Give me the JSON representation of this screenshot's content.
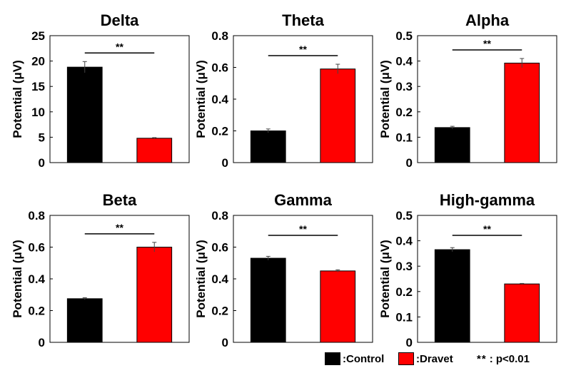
{
  "legend": {
    "control": {
      "label": ":Control",
      "color": "#000000"
    },
    "dravet": {
      "label": ":Dravet",
      "color": "#ff0000"
    },
    "significance": {
      "symbol": "**",
      "label": ": p<0.01"
    }
  },
  "chart_data": [
    {
      "type": "bar",
      "title": "Delta",
      "ylabel": "Potential (μV)",
      "ylim": [
        0,
        25
      ],
      "yticks": [
        "0",
        "5",
        "10",
        "15",
        "20",
        "25"
      ],
      "categories": [
        "Control",
        "Dravet"
      ],
      "values": [
        18.8,
        4.8
      ],
      "errors": [
        1.1,
        0.12
      ],
      "colors": [
        "#000000",
        "#ff0000"
      ],
      "significance": "**"
    },
    {
      "type": "bar",
      "title": "Theta",
      "ylabel": "Potential (μV)",
      "ylim": [
        0,
        0.8
      ],
      "yticks": [
        "0",
        "0.2",
        "0.4",
        "0.6",
        "0.8"
      ],
      "categories": [
        "Control",
        "Dravet"
      ],
      "values": [
        0.2,
        0.59
      ],
      "errors": [
        0.012,
        0.03
      ],
      "colors": [
        "#000000",
        "#ff0000"
      ],
      "significance": "**"
    },
    {
      "type": "bar",
      "title": "Alpha",
      "ylabel": "Potential (μV)",
      "ylim": [
        0,
        0.5
      ],
      "yticks": [
        "0",
        "0.1",
        "0.2",
        "0.3",
        "0.4",
        "0.5"
      ],
      "categories": [
        "Control",
        "Dravet"
      ],
      "values": [
        0.138,
        0.392
      ],
      "errors": [
        0.005,
        0.018
      ],
      "colors": [
        "#000000",
        "#ff0000"
      ],
      "significance": "**"
    },
    {
      "type": "bar",
      "title": "Beta",
      "ylabel": "Potential (μV)",
      "ylim": [
        0,
        0.8
      ],
      "yticks": [
        "0",
        "0.2",
        "0.4",
        "0.6",
        "0.8"
      ],
      "categories": [
        "Control",
        "Dravet"
      ],
      "values": [
        0.275,
        0.6
      ],
      "errors": [
        0.006,
        0.03
      ],
      "colors": [
        "#000000",
        "#ff0000"
      ],
      "significance": "**"
    },
    {
      "type": "bar",
      "title": "Gamma",
      "ylabel": "Potential (μV)",
      "ylim": [
        0,
        0.8
      ],
      "yticks": [
        "0",
        "0.2",
        "0.4",
        "0.6",
        "0.8"
      ],
      "categories": [
        "Control",
        "Dravet"
      ],
      "values": [
        0.53,
        0.45
      ],
      "errors": [
        0.012,
        0.007
      ],
      "colors": [
        "#000000",
        "#ff0000"
      ],
      "significance": "**"
    },
    {
      "type": "bar",
      "title": "High-gamma",
      "ylabel": "Potential (μV)",
      "ylim": [
        0,
        0.5
      ],
      "yticks": [
        "0",
        "0.1",
        "0.2",
        "0.3",
        "0.4",
        "0.5"
      ],
      "categories": [
        "Control",
        "Dravet"
      ],
      "values": [
        0.365,
        0.23
      ],
      "errors": [
        0.008,
        0.002
      ],
      "colors": [
        "#000000",
        "#ff0000"
      ],
      "significance": "**"
    }
  ]
}
